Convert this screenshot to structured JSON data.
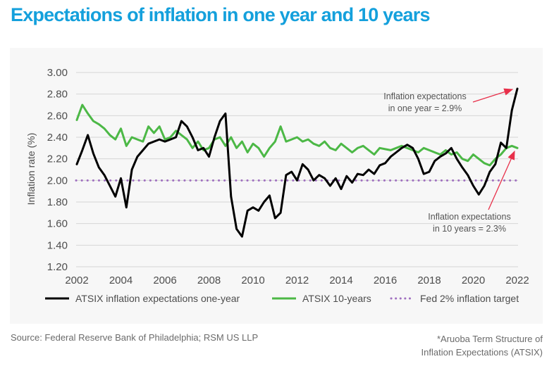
{
  "title": "Expectations of inflation in one year and 10 years",
  "source": "Source: Federal Reserve Bank of Philadelphia; RSM US LLP",
  "footnote_line1": "*Aruoba Term Structure of",
  "footnote_line2": "Inflation Expectations (ATSIX)",
  "colors": {
    "title": "#14a0dc",
    "one_year": "#000000",
    "ten_year": "#4cb846",
    "target": "#a070c0",
    "arrow": "#e8304a",
    "grid": "#d6d6d6"
  },
  "chart_data": {
    "type": "line",
    "title": "Expectations of inflation in one year and 10 years",
    "xlabel": "",
    "ylabel": "Inflation rate (%)",
    "xlim": [
      2002,
      2022
    ],
    "ylim": [
      1.2,
      3.0
    ],
    "grid": true,
    "legend_position": "bottom",
    "x_ticks": [
      "2002",
      "2004",
      "2006",
      "2008",
      "2010",
      "2012",
      "2014",
      "2016",
      "2018",
      "2020",
      "2022"
    ],
    "y_ticks": [
      "3.00",
      "2.80",
      "2.60",
      "2.40",
      "2.20",
      "2.00",
      "1.80",
      "1.60",
      "1.40",
      "1.20"
    ],
    "series": [
      {
        "name": "ATSIX inflation expectations one-year",
        "style": "solid-black",
        "x": [
          2002.0,
          2002.25,
          2002.5,
          2002.75,
          2003.0,
          2003.25,
          2003.5,
          2003.75,
          2004.0,
          2004.25,
          2004.5,
          2004.75,
          2005.0,
          2005.25,
          2005.5,
          2005.75,
          2006.0,
          2006.25,
          2006.5,
          2006.75,
          2007.0,
          2007.25,
          2007.5,
          2007.75,
          2008.0,
          2008.25,
          2008.5,
          2008.75,
          2009.0,
          2009.25,
          2009.5,
          2009.75,
          2010.0,
          2010.25,
          2010.5,
          2010.75,
          2011.0,
          2011.25,
          2011.5,
          2011.75,
          2012.0,
          2012.25,
          2012.5,
          2012.75,
          2013.0,
          2013.25,
          2013.5,
          2013.75,
          2014.0,
          2014.25,
          2014.5,
          2014.75,
          2015.0,
          2015.25,
          2015.5,
          2015.75,
          2016.0,
          2016.25,
          2016.5,
          2016.75,
          2017.0,
          2017.25,
          2017.5,
          2017.75,
          2018.0,
          2018.25,
          2018.5,
          2018.75,
          2019.0,
          2019.25,
          2019.5,
          2019.75,
          2020.0,
          2020.25,
          2020.5,
          2020.75,
          2021.0,
          2021.25,
          2021.5,
          2021.75,
          2022.0
        ],
        "values": [
          2.15,
          2.28,
          2.42,
          2.25,
          2.12,
          2.05,
          1.95,
          1.85,
          2.02,
          1.75,
          2.1,
          2.22,
          2.28,
          2.34,
          2.36,
          2.38,
          2.36,
          2.38,
          2.4,
          2.55,
          2.5,
          2.4,
          2.28,
          2.3,
          2.22,
          2.4,
          2.55,
          2.62,
          1.85,
          1.55,
          1.48,
          1.72,
          1.75,
          1.72,
          1.8,
          1.86,
          1.65,
          1.7,
          2.05,
          2.08,
          2.0,
          2.15,
          2.1,
          2.0,
          2.05,
          2.02,
          1.95,
          2.02,
          1.92,
          2.04,
          1.98,
          2.06,
          2.05,
          2.1,
          2.06,
          2.14,
          2.16,
          2.22,
          2.26,
          2.3,
          2.33,
          2.3,
          2.2,
          2.06,
          2.08,
          2.18,
          2.22,
          2.25,
          2.3,
          2.2,
          2.12,
          2.05,
          1.95,
          1.87,
          1.95,
          2.08,
          2.15,
          2.35,
          2.3,
          2.65,
          2.85
        ]
      },
      {
        "name": "ATSIX 10-years",
        "style": "solid-green",
        "x": [
          2002.0,
          2002.25,
          2002.5,
          2002.75,
          2003.0,
          2003.25,
          2003.5,
          2003.75,
          2004.0,
          2004.25,
          2004.5,
          2004.75,
          2005.0,
          2005.25,
          2005.5,
          2005.75,
          2006.0,
          2006.25,
          2006.5,
          2006.75,
          2007.0,
          2007.25,
          2007.5,
          2007.75,
          2008.0,
          2008.25,
          2008.5,
          2008.75,
          2009.0,
          2009.25,
          2009.5,
          2009.75,
          2010.0,
          2010.25,
          2010.5,
          2010.75,
          2011.0,
          2011.25,
          2011.5,
          2011.75,
          2012.0,
          2012.25,
          2012.5,
          2012.75,
          2013.0,
          2013.25,
          2013.5,
          2013.75,
          2014.0,
          2014.25,
          2014.5,
          2014.75,
          2015.0,
          2015.25,
          2015.5,
          2015.75,
          2016.0,
          2016.25,
          2016.5,
          2016.75,
          2017.0,
          2017.25,
          2017.5,
          2017.75,
          2018.0,
          2018.25,
          2018.5,
          2018.75,
          2019.0,
          2019.25,
          2019.5,
          2019.75,
          2020.0,
          2020.25,
          2020.5,
          2020.75,
          2021.0,
          2021.25,
          2021.5,
          2021.75,
          2022.0
        ],
        "values": [
          2.56,
          2.7,
          2.62,
          2.55,
          2.52,
          2.48,
          2.42,
          2.38,
          2.48,
          2.32,
          2.4,
          2.38,
          2.36,
          2.5,
          2.44,
          2.5,
          2.38,
          2.4,
          2.46,
          2.42,
          2.38,
          2.3,
          2.36,
          2.28,
          2.3,
          2.38,
          2.4,
          2.32,
          2.4,
          2.3,
          2.36,
          2.26,
          2.34,
          2.3,
          2.22,
          2.3,
          2.36,
          2.5,
          2.36,
          2.38,
          2.4,
          2.36,
          2.38,
          2.34,
          2.32,
          2.36,
          2.3,
          2.28,
          2.34,
          2.3,
          2.26,
          2.3,
          2.32,
          2.28,
          2.24,
          2.3,
          2.29,
          2.28,
          2.3,
          2.32,
          2.3,
          2.28,
          2.26,
          2.3,
          2.28,
          2.26,
          2.24,
          2.28,
          2.24,
          2.26,
          2.2,
          2.18,
          2.24,
          2.2,
          2.16,
          2.14,
          2.2,
          2.24,
          2.3,
          2.32,
          2.3
        ]
      },
      {
        "name": "Fed 2% inflation target",
        "style": "dotted-purple",
        "x": [
          2002,
          2022
        ],
        "values": [
          2.0,
          2.0
        ]
      }
    ],
    "annotations": [
      {
        "line1": "Inflation expectations",
        "line2": "in one year = 2.9%",
        "points_to": {
          "x": 2022.0,
          "value": 2.85
        }
      },
      {
        "line1": "Inflation expectations",
        "line2": "in 10 years = 2.3%",
        "points_to": {
          "x": 2022.0,
          "value": 2.3
        }
      }
    ]
  }
}
